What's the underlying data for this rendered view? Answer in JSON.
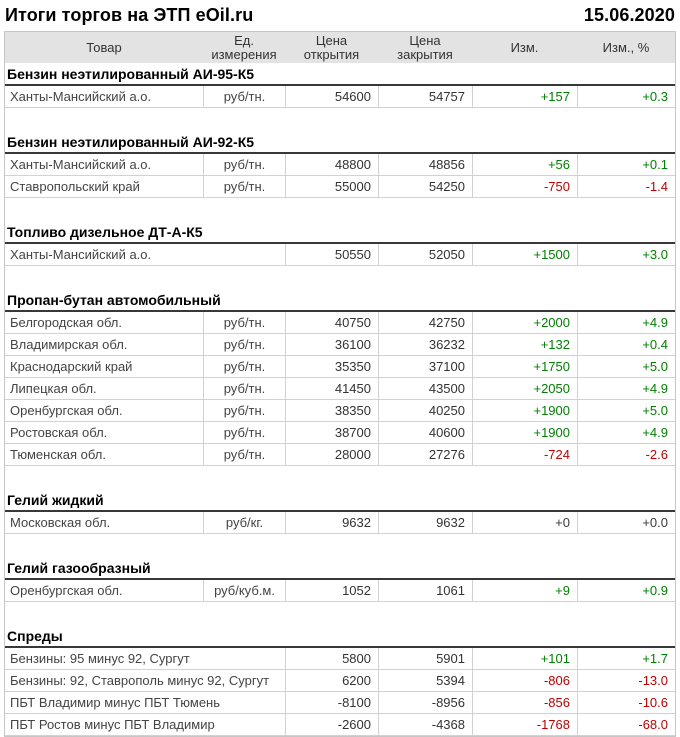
{
  "colors": {
    "positive": "#008000",
    "negative": "#c00000",
    "neutral": "#3a3a3a",
    "header_bg": "#e3e3e3",
    "row_border": "#d2d2d2",
    "section_rule": "#383838"
  },
  "chart_data": {
    "type": "table",
    "title": "Итоги торгов на ЭТП eOil.ru",
    "date": "15.06.2020",
    "columns": [
      "Товар",
      "Ед.\nизмерения",
      "Цена\nоткрытия",
      "Цена\nзакрытия",
      "Изм.",
      "Изм., %"
    ],
    "sections": [
      {
        "title": "Бензин неэтилированный АИ-95-К5",
        "rows": [
          {
            "product": "Ханты-Мансийский а.о.",
            "unit": "руб/тн.",
            "open": "54600",
            "close": "54757",
            "change": "+157",
            "change_pct": "+0.3",
            "dir": "up"
          }
        ]
      },
      {
        "title": "Бензин неэтилированный АИ-92-К5",
        "rows": [
          {
            "product": "Ханты-Мансийский а.о.",
            "unit": "руб/тн.",
            "open": "48800",
            "close": "48856",
            "change": "+56",
            "change_pct": "+0.1",
            "dir": "up"
          },
          {
            "product": "Ставропольский край",
            "unit": "руб/тн.",
            "open": "55000",
            "close": "54250",
            "change": "-750",
            "change_pct": "-1.4",
            "dir": "down"
          }
        ]
      },
      {
        "title": "Топливо дизельное ДТ-А-К5",
        "rows": [
          {
            "product": "Ханты-Мансийский а.о.",
            "unit": null,
            "open": "50550",
            "close": "52050",
            "change": "+1500",
            "change_pct": "+3.0",
            "dir": "up"
          }
        ]
      },
      {
        "title": "Пропан-бутан автомобильный",
        "rows": [
          {
            "product": "Белгородская обл.",
            "unit": "руб/тн.",
            "open": "40750",
            "close": "42750",
            "change": "+2000",
            "change_pct": "+4.9",
            "dir": "up"
          },
          {
            "product": "Владимирская обл.",
            "unit": "руб/тн.",
            "open": "36100",
            "close": "36232",
            "change": "+132",
            "change_pct": "+0.4",
            "dir": "up"
          },
          {
            "product": "Краснодарский край",
            "unit": "руб/тн.",
            "open": "35350",
            "close": "37100",
            "change": "+1750",
            "change_pct": "+5.0",
            "dir": "up"
          },
          {
            "product": "Липецкая обл.",
            "unit": "руб/тн.",
            "open": "41450",
            "close": "43500",
            "change": "+2050",
            "change_pct": "+4.9",
            "dir": "up"
          },
          {
            "product": "Оренбургская обл.",
            "unit": "руб/тн.",
            "open": "38350",
            "close": "40250",
            "change": "+1900",
            "change_pct": "+5.0",
            "dir": "up"
          },
          {
            "product": "Ростовская обл.",
            "unit": "руб/тн.",
            "open": "38700",
            "close": "40600",
            "change": "+1900",
            "change_pct": "+4.9",
            "dir": "up"
          },
          {
            "product": "Тюменская обл.",
            "unit": "руб/тн.",
            "open": "28000",
            "close": "27276",
            "change": "-724",
            "change_pct": "-2.6",
            "dir": "down"
          }
        ]
      },
      {
        "title": "Гелий жидкий",
        "rows": [
          {
            "product": "Московская обл.",
            "unit": "руб/кг.",
            "open": "9632",
            "close": "9632",
            "change": "+0",
            "change_pct": "+0.0",
            "dir": "flat"
          }
        ]
      },
      {
        "title": "Гелий газообразный",
        "rows": [
          {
            "product": "Оренбургская обл.",
            "unit": "руб/куб.м.",
            "open": "1052",
            "close": "1061",
            "change": "+9",
            "change_pct": "+0.9",
            "dir": "up"
          }
        ]
      },
      {
        "title": "Спреды",
        "rows": [
          {
            "product": "Бензины: 95 минус 92, Сургут",
            "unit": null,
            "open": "5800",
            "close": "5901",
            "change": "+101",
            "change_pct": "+1.7",
            "dir": "up"
          },
          {
            "product": "Бензины: 92, Ставрополь минус 92, Сургут",
            "unit": null,
            "open": "6200",
            "close": "5394",
            "change": "-806",
            "change_pct": "-13.0",
            "dir": "down"
          },
          {
            "product": "ПБТ Владимир минус ПБТ Тюмень",
            "unit": null,
            "open": "-8100",
            "close": "-8956",
            "change": "-856",
            "change_pct": "-10.6",
            "dir": "down"
          },
          {
            "product": "ПБТ Ростов минус ПБТ Владимир",
            "unit": null,
            "open": "-2600",
            "close": "-4368",
            "change": "-1768",
            "change_pct": "-68.0",
            "dir": "down"
          }
        ]
      }
    ]
  }
}
